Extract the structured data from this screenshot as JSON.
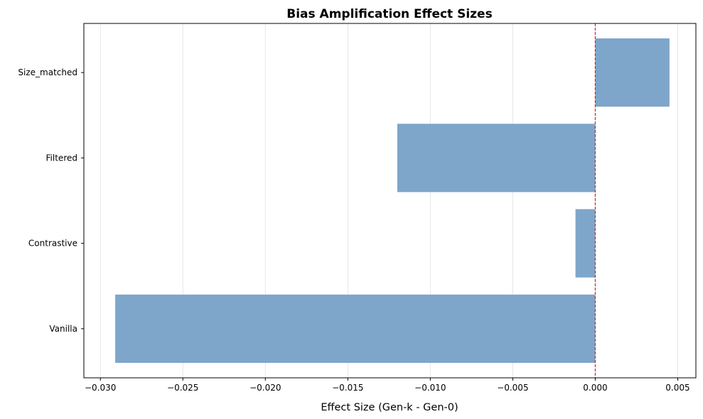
{
  "chart_data": {
    "type": "bar",
    "orientation": "horizontal",
    "title": "Bias Amplification Effect Sizes",
    "xlabel": "Effect Size (Gen-k - Gen-0)",
    "ylabel": "",
    "categories": [
      "Vanilla",
      "Contrastive",
      "Filtered",
      "Size_matched"
    ],
    "values": [
      -0.0291,
      -0.0012,
      -0.012,
      0.0045
    ],
    "xlim": [
      -0.031,
      0.0061
    ],
    "xticks": [
      -0.03,
      -0.025,
      -0.02,
      -0.015,
      -0.01,
      -0.005,
      0.0,
      0.005
    ],
    "xtick_labels": [
      "−0.030",
      "−0.025",
      "−0.020",
      "−0.015",
      "−0.010",
      "−0.005",
      "0.000",
      "0.005"
    ],
    "grid": "vertical",
    "reference_line": {
      "x": 0,
      "style": "dashed",
      "color": "#d62728"
    },
    "bar_color": "#7ea6ca",
    "legend": "none"
  }
}
